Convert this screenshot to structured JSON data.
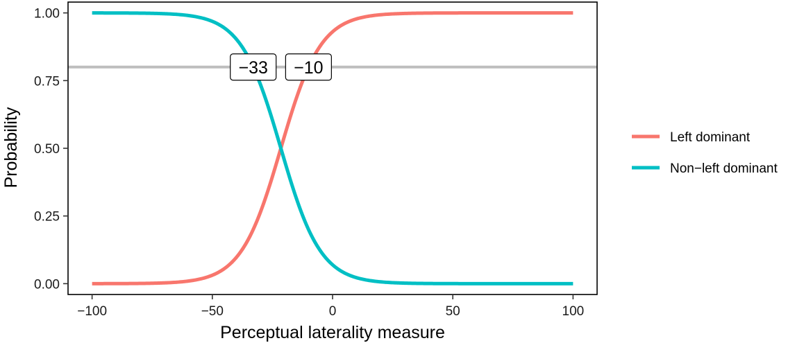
{
  "chart_data": {
    "type": "line",
    "title": "",
    "xlabel": "Perceptual laterality measure",
    "ylabel": "Probability",
    "xlim": [
      -110,
      110
    ],
    "ylim": [
      -0.04,
      1.04
    ],
    "x_ticks": [
      -100,
      -50,
      0,
      50,
      100
    ],
    "x_tick_labels": [
      "−100",
      "−50",
      "0",
      "50",
      "100"
    ],
    "y_ticks": [
      0,
      0.25,
      0.5,
      0.75,
      1
    ],
    "y_tick_labels": [
      "0.00",
      "0.25",
      "0.50",
      "0.75",
      "1.00"
    ],
    "grid": false,
    "legend_position": "right",
    "x": [
      -100,
      -90,
      -80,
      -70,
      -60,
      -50,
      -45,
      -40,
      -35,
      -33,
      -30,
      -25,
      -21.5,
      -20,
      -15,
      -10,
      -5,
      0,
      5,
      10,
      20,
      30,
      40,
      50,
      60,
      70,
      80,
      90,
      100
    ],
    "series": [
      {
        "name": "Left dominant",
        "color": "#F8766D",
        "values": [
          0.0002,
          0.0006,
          0.0015,
          0.0041,
          0.011,
          0.03,
          0.048,
          0.077,
          0.121,
          0.145,
          0.186,
          0.276,
          0.5,
          0.535,
          0.667,
          0.8,
          0.886,
          0.937,
          0.966,
          0.982,
          0.995,
          0.9986,
          0.9996,
          0.9999,
          1.0,
          1.0,
          1.0,
          1.0,
          1.0
        ]
      },
      {
        "name": "Non−left dominant",
        "color": "#00BFC4",
        "values": [
          0.9998,
          0.9994,
          0.9985,
          0.9959,
          0.989,
          0.97,
          0.952,
          0.923,
          0.879,
          0.8,
          0.768,
          0.638,
          0.5,
          0.441,
          0.3,
          0.194,
          0.118,
          0.069,
          0.039,
          0.022,
          0.006,
          0.0018,
          0.0005,
          0.0001,
          0.0,
          0.0,
          0.0,
          0.0,
          0.0
        ]
      }
    ],
    "reference_line": {
      "y": 0.8,
      "color": "#BEBEBE"
    },
    "annotations": [
      {
        "label": "−33",
        "x": -33,
        "y": 0.8
      },
      {
        "label": "−10",
        "x": -10,
        "y": 0.8
      }
    ]
  }
}
